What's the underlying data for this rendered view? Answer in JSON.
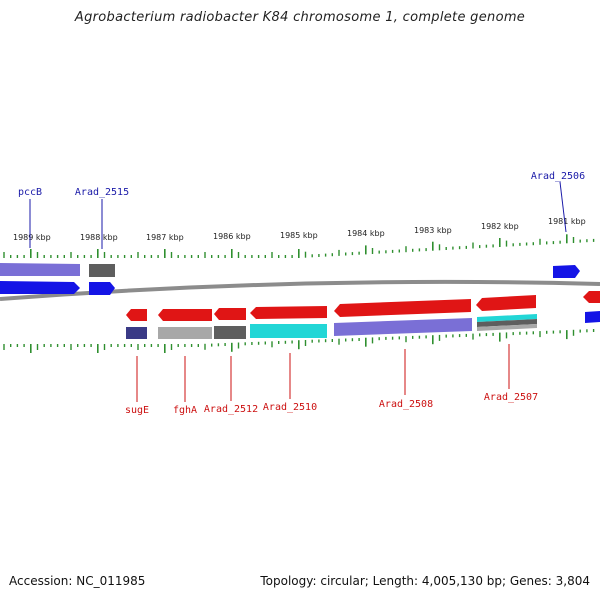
{
  "title": "Agrobacterium radiobacter K84 chromosome 1, complete genome",
  "footer": {
    "accession": "Accession: NC_011985",
    "topology": "Topology: circular; Length: 4,005,130 bp; Genes: 3,804"
  },
  "ruler_labels": [
    "1989 kbp",
    "1988 kbp",
    "1987 kbp",
    "1986 kbp",
    "1985 kbp",
    "1984 kbp",
    "1983 kbp",
    "1982 kbp",
    "1981 kbp"
  ],
  "gene_labels_top": [
    "pccB",
    "Arad_2515",
    "Arad_2506"
  ],
  "gene_labels_bottom": [
    "sugE",
    "fghA",
    "Arad_2512",
    "Arad_2510",
    "Arad_2508",
    "Arad_2507"
  ],
  "colors": {
    "forward_gene": "#1414e6",
    "forward_cog": "#7a6fd6",
    "reverse_gene": "#e01515",
    "backbone": "#8c8c8c",
    "ticks": "#2f8f2f",
    "label_top": "#1a1aa8",
    "label_bottom": "#cc1111",
    "cog_gray": "#a8a8a8",
    "cog_darkgray": "#5e5e5e",
    "cog_cyan": "#22d6d6",
    "cog_navy": "#3a3a86"
  }
}
